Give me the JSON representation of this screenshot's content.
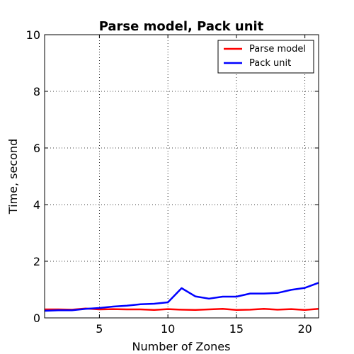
{
  "chart_data": {
    "type": "line",
    "title": "Parse model, Pack unit",
    "xlabel": "Number of Zones",
    "ylabel": "Time, second",
    "xlim": [
      1,
      21
    ],
    "ylim": [
      0,
      10
    ],
    "xticks": [
      5,
      10,
      15,
      20
    ],
    "yticks": [
      0,
      2,
      4,
      6,
      8,
      10
    ],
    "grid": true,
    "legend": "top-right",
    "series": [
      {
        "name": "Parse model",
        "color": "#ff0000",
        "x": [
          1,
          2,
          3,
          4,
          5,
          6,
          7,
          8,
          9,
          10,
          11,
          12,
          13,
          14,
          15,
          16,
          17,
          18,
          19,
          20,
          21
        ],
        "y": [
          0.3,
          0.3,
          0.29,
          0.33,
          0.3,
          0.31,
          0.3,
          0.3,
          0.28,
          0.31,
          0.29,
          0.28,
          0.3,
          0.32,
          0.28,
          0.29,
          0.32,
          0.29,
          0.31,
          0.28,
          0.32
        ]
      },
      {
        "name": "Pack unit",
        "color": "#0000ff",
        "x": [
          1,
          2,
          3,
          4,
          5,
          6,
          7,
          8,
          9,
          10,
          11,
          12,
          13,
          14,
          15,
          16,
          17,
          18,
          19,
          20,
          21
        ],
        "y": [
          0.25,
          0.27,
          0.27,
          0.32,
          0.35,
          0.4,
          0.43,
          0.48,
          0.5,
          0.55,
          1.05,
          0.76,
          0.68,
          0.75,
          0.75,
          0.86,
          0.86,
          0.88,
          0.99,
          1.06,
          1.24
        ]
      }
    ]
  }
}
